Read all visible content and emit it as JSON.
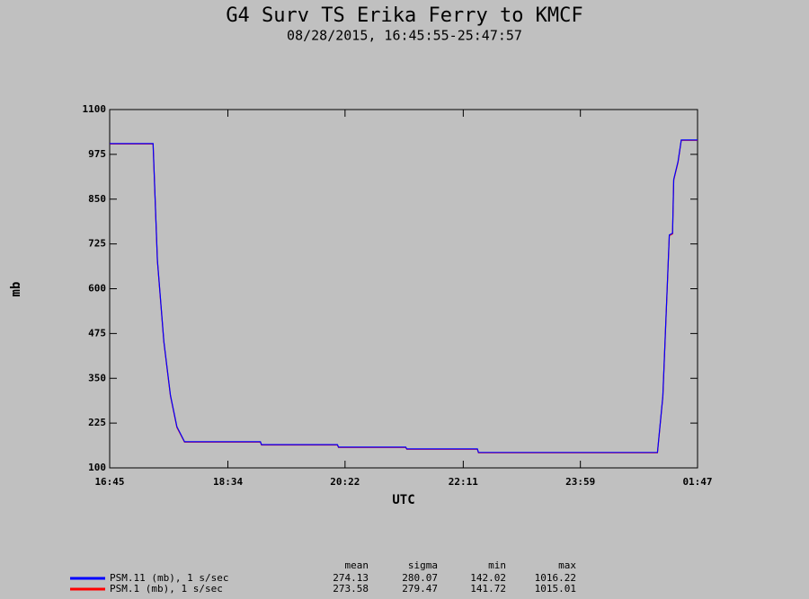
{
  "chart_data": {
    "type": "line",
    "title": "G4 Surv TS Erika Ferry to KMCF",
    "subtitle": "08/28/2015, 16:45:55-25:47:57",
    "x_label": "UTC",
    "y_label": "mb",
    "x": [
      "16:45",
      "17:25",
      "17:29",
      "17:35",
      "17:41",
      "17:47",
      "17:54",
      "19:04",
      "19:05",
      "20:15",
      "20:16",
      "21:18",
      "21:19",
      "22:24",
      "22:25",
      "01:10",
      "01:15",
      "01:19",
      "01:21",
      "01:24",
      "01:25",
      "01:29",
      "01:32",
      "01:47"
    ],
    "series": [
      {
        "name": "PSM.11 (mb), 1 s/sec",
        "color": "#0000ff",
        "values": [
          1005,
          1005,
          680,
          453,
          303,
          215,
          173,
          173,
          165,
          165,
          158,
          158,
          153,
          153,
          143,
          143,
          300,
          600,
          750,
          755,
          905,
          955,
          1015,
          1015
        ]
      },
      {
        "name": "PSM.1 (mb), 1 s/sec",
        "color": "#ff0000",
        "values": [
          1004,
          1004,
          678,
          451,
          301,
          213,
          172,
          172,
          164,
          164,
          157,
          157,
          152,
          152,
          142,
          142,
          298,
          598,
          748,
          753,
          903,
          953,
          1014,
          1014
        ]
      }
    ],
    "xlim": [
      "16:45",
      "01:47"
    ],
    "xticks": [
      "16:45",
      "18:34",
      "20:22",
      "22:11",
      "23:59",
      "01:47"
    ],
    "ylim": [
      100,
      1100
    ],
    "yticks": [
      100,
      225,
      350,
      475,
      600,
      725,
      850,
      975,
      1100
    ],
    "stats": {
      "columns": [
        "mean",
        "sigma",
        "min",
        "max"
      ],
      "rows": [
        [
          274.13,
          280.07,
          142.02,
          1016.22
        ],
        [
          273.58,
          279.47,
          141.72,
          1015.01
        ]
      ]
    }
  }
}
